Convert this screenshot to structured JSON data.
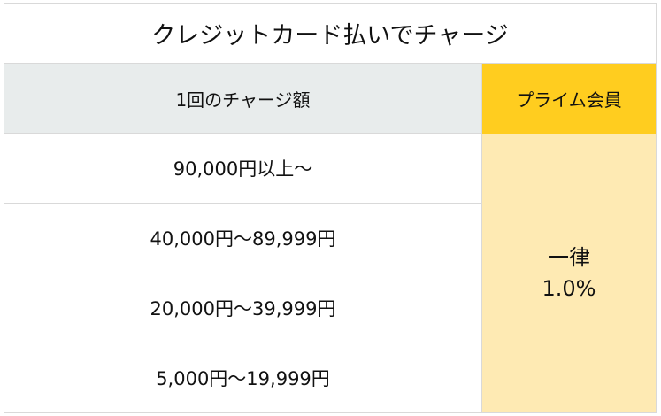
{
  "table": {
    "title": "クレジットカード払いでチャージ",
    "header": {
      "charge_amount": "1回のチャージ額",
      "prime_member": "プライム会員"
    },
    "rows": [
      "90,000円以上～",
      "40,000円～89,999円",
      "20,000円～39,999円",
      "5,000円～19,999円"
    ],
    "rate": {
      "label": "一律",
      "value": "1.0%"
    }
  },
  "colors": {
    "header_gray": "#e8ecec",
    "prime_header_yellow": "#ffcd1f",
    "prime_body_yellow": "#feeab3",
    "border": "#d9d9d9"
  }
}
